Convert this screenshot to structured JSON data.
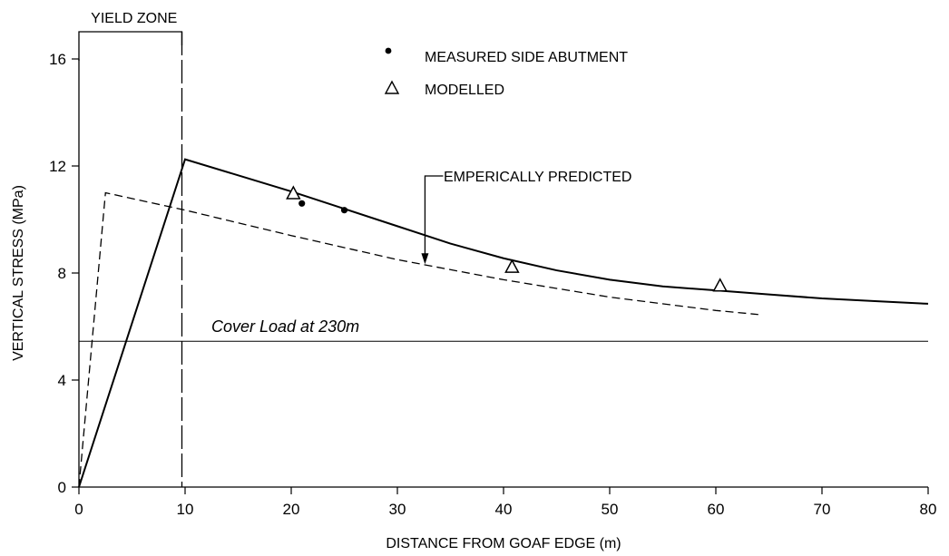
{
  "chart_data": {
    "type": "line",
    "title": "",
    "xlabel": "DISTANCE FROM GOAF EDGE (m)",
    "ylabel": "VERTICAL STRESS (MPa)",
    "xlim": [
      0,
      80
    ],
    "ylim": [
      0,
      16
    ],
    "x_ticks": [
      0,
      10,
      20,
      30,
      40,
      50,
      60,
      70,
      80
    ],
    "y_ticks": [
      0,
      4,
      8,
      12,
      16
    ],
    "grid": false,
    "legend_position": "top",
    "legend": [
      {
        "label": "MEASURED SIDE ABUTMENT",
        "marker": "filled-circle"
      },
      {
        "label": "MODELLED",
        "marker": "open-triangle"
      }
    ],
    "series": [
      {
        "name": "",
        "style": "solid",
        "x": [
          0,
          10,
          15,
          20,
          25,
          30,
          35,
          40,
          45,
          50,
          55,
          60,
          65,
          70,
          75,
          80
        ],
        "y": [
          0,
          12.25,
          11.65,
          11.05,
          10.4,
          9.75,
          9.1,
          8.55,
          8.1,
          7.75,
          7.5,
          7.35,
          7.2,
          7.05,
          6.95,
          6.85
        ]
      },
      {
        "name": "",
        "style": "dashed",
        "x": [
          0,
          2.5,
          10,
          20,
          30,
          40,
          50,
          60,
          64
        ],
        "y": [
          0,
          11.0,
          10.35,
          9.4,
          8.5,
          7.75,
          7.1,
          6.6,
          6.45
        ]
      },
      {
        "name": "MEASURED SIDE ABUTMENT",
        "style": "markers",
        "marker": "filled-circle",
        "x": [
          21,
          25
        ],
        "y": [
          10.6,
          10.35
        ]
      },
      {
        "name": "MODELLED",
        "style": "markers",
        "marker": "open-triangle",
        "x": [
          20.2,
          40.8,
          60.4
        ],
        "y": [
          11.0,
          8.25,
          7.55
        ]
      }
    ],
    "reference_lines": [
      {
        "label": "Cover Load at 230m",
        "orientation": "horizontal",
        "y": 5.45
      },
      {
        "label": "",
        "orientation": "vertical",
        "x": 9.7,
        "style": "long-dash"
      }
    ],
    "annotations": {
      "yield_zone": {
        "label": "YIELD ZONE",
        "x_range": [
          0,
          9.7
        ]
      },
      "empirical": {
        "label": "EMPERICALLY PREDICTED",
        "arrow_to_x": 32.6,
        "arrow_to_y": 8.4
      }
    }
  }
}
